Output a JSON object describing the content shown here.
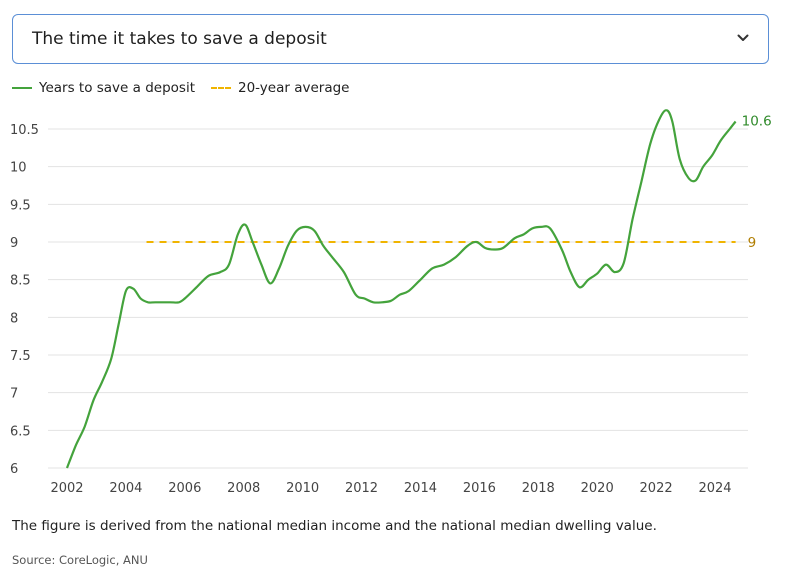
{
  "selector": {
    "label": "The time it takes to save a deposit",
    "icon": "chevron-down-icon"
  },
  "caption": "The figure is derived from the national median income and the national median dwelling value.",
  "source": "Source: CoreLogic, ANU",
  "colors": {
    "series": "#44a33c",
    "average": "#f0b400",
    "average_label": "#b07d00",
    "grid": "#e3e3e3",
    "border": "#5b8fd6"
  },
  "chart_data": {
    "type": "line",
    "title": "The time it takes to save a deposit",
    "xlabel": "",
    "ylabel": "",
    "xlim": [
      2001.5,
      2025.2
    ],
    "ylim": [
      6,
      10.8
    ],
    "xticks": [
      2002,
      2004,
      2006,
      2008,
      2010,
      2012,
      2014,
      2016,
      2018,
      2020,
      2022,
      2024
    ],
    "yticks": [
      6,
      6.5,
      7,
      7.5,
      8,
      8.5,
      9,
      9.5,
      10,
      10.5
    ],
    "ytick_labels": [
      "6",
      "6.5",
      "7",
      "7.5",
      "8",
      "8.5",
      "9",
      "9.5",
      "10",
      "10.5"
    ],
    "grid": true,
    "legend_position": "top-left",
    "series": [
      {
        "name": "Years to save a deposit",
        "style": "solid",
        "end_label": "10.6",
        "x": [
          2002.0,
          2002.3,
          2002.6,
          2002.9,
          2003.2,
          2003.5,
          2003.75,
          2004.0,
          2004.25,
          2004.5,
          2004.75,
          2005.0,
          2005.5,
          2005.8,
          2006.0,
          2006.4,
          2006.8,
          2007.2,
          2007.5,
          2007.8,
          2008.05,
          2008.3,
          2008.6,
          2008.9,
          2009.2,
          2009.5,
          2009.8,
          2010.1,
          2010.4,
          2010.7,
          2011.0,
          2011.4,
          2011.8,
          2012.1,
          2012.4,
          2012.7,
          2013.0,
          2013.3,
          2013.6,
          2014.0,
          2014.4,
          2014.8,
          2015.2,
          2015.6,
          2015.9,
          2016.2,
          2016.5,
          2016.8,
          2017.2,
          2017.5,
          2017.8,
          2018.1,
          2018.4,
          2018.8,
          2019.1,
          2019.4,
          2019.7,
          2020.0,
          2020.3,
          2020.6,
          2020.9,
          2021.2,
          2021.5,
          2021.8,
          2022.1,
          2022.35,
          2022.55,
          2022.8,
          2023.1,
          2023.35,
          2023.6,
          2023.9,
          2024.2,
          2024.5,
          2024.7
        ],
        "y": [
          6.0,
          6.3,
          6.55,
          6.9,
          7.15,
          7.45,
          7.9,
          8.35,
          8.38,
          8.25,
          8.2,
          8.2,
          8.2,
          8.2,
          8.25,
          8.4,
          8.55,
          8.6,
          8.7,
          9.1,
          9.23,
          9.0,
          8.7,
          8.45,
          8.65,
          8.95,
          9.15,
          9.2,
          9.15,
          8.95,
          8.8,
          8.6,
          8.3,
          8.25,
          8.2,
          8.2,
          8.22,
          8.3,
          8.35,
          8.5,
          8.65,
          8.7,
          8.8,
          8.95,
          9.0,
          8.92,
          8.9,
          8.92,
          9.05,
          9.1,
          9.18,
          9.2,
          9.18,
          8.9,
          8.6,
          8.4,
          8.5,
          8.58,
          8.7,
          8.6,
          8.72,
          9.3,
          9.8,
          10.3,
          10.62,
          10.75,
          10.6,
          10.1,
          9.85,
          9.82,
          10.0,
          10.15,
          10.35,
          10.5,
          10.6
        ]
      },
      {
        "name": "20-year average",
        "style": "dashed",
        "end_label": "9",
        "x": [
          2004.7,
          2024.7
        ],
        "y": [
          9,
          9
        ]
      }
    ]
  }
}
